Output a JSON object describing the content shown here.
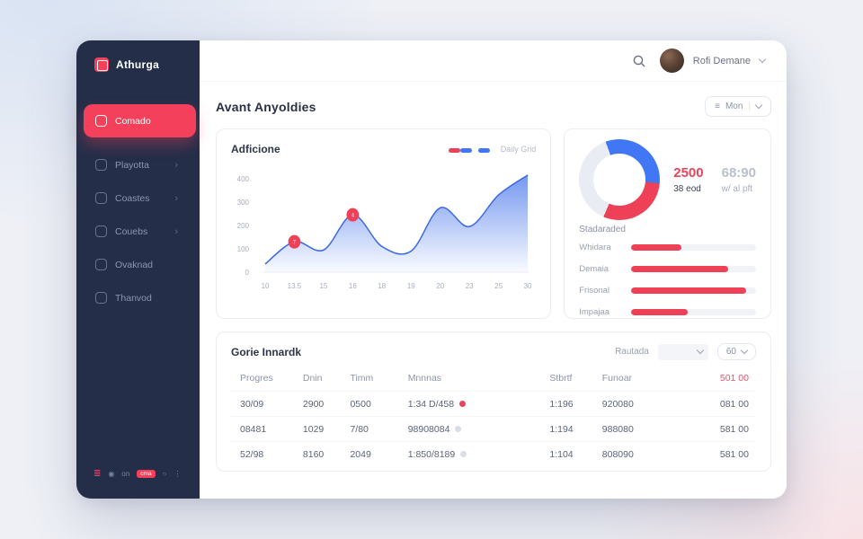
{
  "sidebar": {
    "logo_text": "Athurga",
    "items": [
      {
        "label": "Comado",
        "icon": "home-icon",
        "active": true,
        "chevron": false
      },
      {
        "label": "Playotta",
        "icon": "reports-icon",
        "active": false,
        "chevron": true
      },
      {
        "label": "Coastes",
        "icon": "courses-icon",
        "active": false,
        "chevron": true
      },
      {
        "label": "Couebs",
        "icon": "folder-icon",
        "active": false,
        "chevron": true
      },
      {
        "label": "Ovaknad",
        "icon": "students-icon",
        "active": false,
        "chevron": false
      },
      {
        "label": "Thanvod",
        "icon": "channels-icon",
        "active": false,
        "chevron": false
      }
    ],
    "footer_icons": [
      {
        "text": "≣",
        "style": "red",
        "name": "logo-mini-icon"
      },
      {
        "text": "◉",
        "style": "",
        "name": "target-icon"
      },
      {
        "text": "on",
        "style": "",
        "name": "status-text"
      },
      {
        "text": "cma",
        "style": "badge",
        "name": "cma-badge"
      },
      {
        "text": "○",
        "style": "",
        "name": "circle-icon"
      },
      {
        "text": "⋮",
        "style": "",
        "name": "more-icon"
      }
    ]
  },
  "header": {
    "user_name": "Rofi Demane"
  },
  "page": {
    "title": "Avant Anyoldies",
    "filter_label": "Mon"
  },
  "activity_chart": {
    "title": "Adficione",
    "legend_text": "Daily Grid"
  },
  "stats_card": {
    "primary": {
      "value": "2500",
      "label": "38 eod"
    },
    "secondary": {
      "value": "68:90",
      "label": "w/ al pft"
    },
    "breakdown_title": "Stadaraded"
  },
  "table_card": {
    "title": "Gorie Innardk",
    "controls": {
      "label": "Rautada",
      "page_size": "60"
    },
    "columns": [
      "Progres",
      "Dnin",
      "Timm",
      "Mnnnas",
      "Stbrtf",
      "Funoar",
      "501 00"
    ],
    "rows": [
      {
        "cells": [
          {
            "text": "30/09",
            "color": "red"
          },
          {
            "text": "2900"
          },
          {
            "text": "0500"
          },
          {
            "text": "1:34 D/458",
            "dot": "red"
          },
          {
            "text": "1:196"
          },
          {
            "text": "920080"
          },
          {
            "text": "081 00",
            "color": "lightred"
          }
        ]
      },
      {
        "cells": [
          {
            "text": "08481",
            "color": "red"
          },
          {
            "text": "1029"
          },
          {
            "text": "7/80"
          },
          {
            "text": "98908084",
            "dot": "grey"
          },
          {
            "text": "1:194"
          },
          {
            "text": "988080"
          },
          {
            "text": "581 00",
            "color": "lightred"
          }
        ]
      },
      {
        "cells": [
          {
            "text": "52/98",
            "color": "blue"
          },
          {
            "text": "8160"
          },
          {
            "text": "2049"
          },
          {
            "text": "1:850/8189",
            "dot": "grey"
          },
          {
            "text": "1:104"
          },
          {
            "text": "808090"
          },
          {
            "text": "581 00",
            "color": "lightred"
          }
        ]
      }
    ]
  },
  "chart_data": [
    {
      "type": "area",
      "title": "Adficione",
      "x_labels": [
        "10",
        "13.5",
        "15",
        "16",
        "18",
        "19",
        "20",
        "23",
        "25",
        "30"
      ],
      "values": [
        35,
        130,
        95,
        245,
        110,
        90,
        275,
        195,
        330,
        415
      ],
      "ylim": [
        0,
        430
      ],
      "y_ticks": [
        {
          "label": "400",
          "value": 400
        },
        {
          "label": "300",
          "value": 300
        },
        {
          "label": "200",
          "value": 200
        },
        {
          "label": "100",
          "value": 100
        },
        {
          "label": "0",
          "value": 0
        }
      ],
      "markers": [
        {
          "index": 1,
          "label": "7"
        },
        {
          "index": 3,
          "label": "4"
        }
      ],
      "legend_colors": [
        "#ee4056",
        "#4176f5",
        "#4176f5"
      ],
      "line_color": "#3f6ae0",
      "fill_color": "#6e93ef",
      "grid": false,
      "legend_position": "top-right"
    },
    {
      "type": "donut",
      "start_angle": -20,
      "segments": [
        {
          "name": "primary",
          "value": 32,
          "color": "#4176f5"
        },
        {
          "name": "secondary",
          "value": 30,
          "color": "#ee4056"
        },
        {
          "name": "remainder",
          "value": 38,
          "color": "#e9ecf2"
        }
      ]
    },
    {
      "type": "bar",
      "orientation": "horizontal",
      "title": "Stadaraded",
      "categories": [
        "Whidara",
        "Demaia",
        "Frisonal",
        "Impajaa"
      ],
      "values_percent": [
        40,
        78,
        92,
        45
      ],
      "color": "#ee4056"
    }
  ]
}
